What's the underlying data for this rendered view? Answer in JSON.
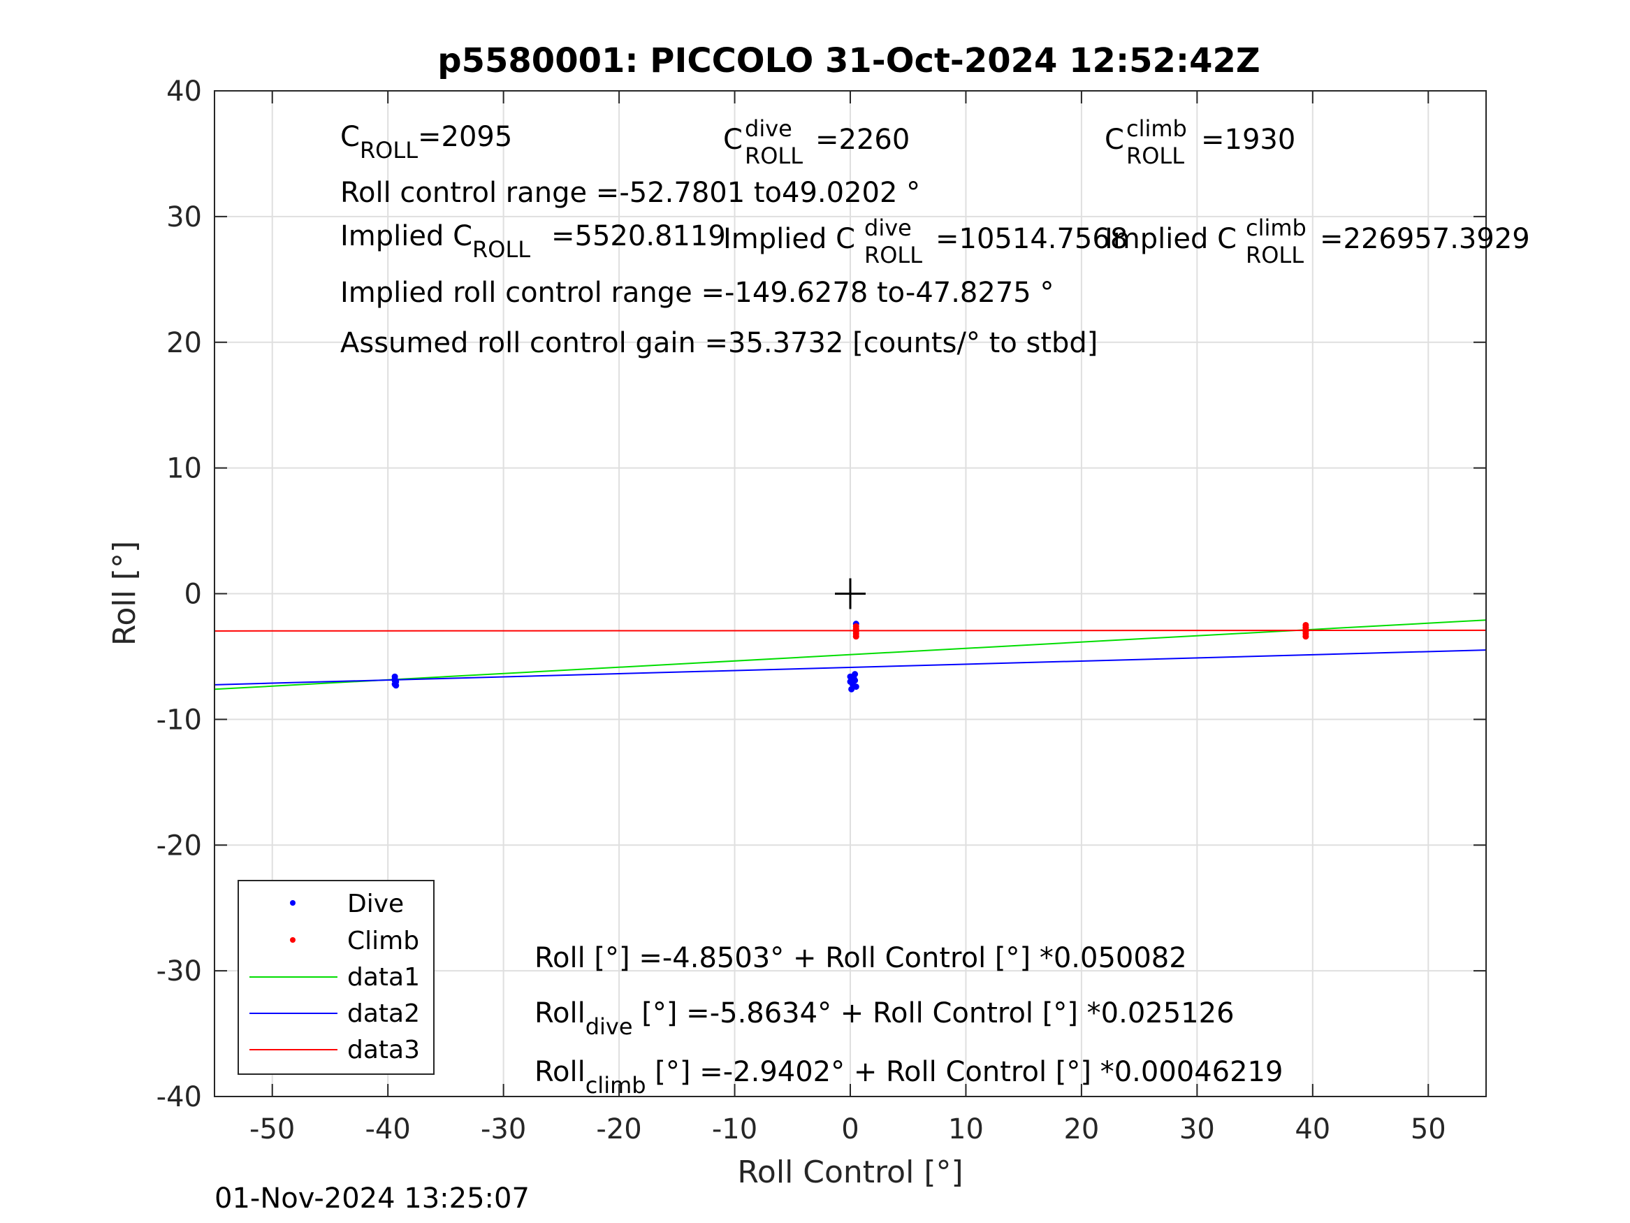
{
  "chart_data": {
    "type": "scatter",
    "title": "p5580001: PICCOLO 31-Oct-2024 12:52:42Z",
    "xlabel": "Roll Control [°]",
    "ylabel": "Roll [°]",
    "xlim": [
      -55,
      55
    ],
    "ylim": [
      -40,
      40
    ],
    "xticks": [
      "-50",
      "-40",
      "-30",
      "-20",
      "-10",
      "0",
      "10",
      "20",
      "30",
      "40",
      "50"
    ],
    "yticks": [
      "40",
      "30",
      "20",
      "10",
      "0",
      "-10",
      "-20",
      "-30",
      "-40"
    ],
    "grid": true,
    "legend_position": "bottom-left",
    "timestamp": "01-Nov-2024 13:25:07",
    "marker": {
      "x": 0,
      "y": 0,
      "symbol": "+"
    },
    "series": [
      {
        "name": "Dive",
        "kind": "points",
        "color": "#0000ff",
        "x": [
          -39.4,
          -39.4,
          -39.4,
          -39.3,
          -39.4,
          -39.3,
          0.0,
          0.3,
          0.4,
          0.0,
          0.2,
          0.5,
          0.1,
          0.4,
          0.5
        ],
        "y": [
          -6.6,
          -6.8,
          -6.9,
          -7.0,
          -7.2,
          -7.3,
          -6.6,
          -6.7,
          -6.9,
          -7.0,
          -7.2,
          -7.4,
          -7.6,
          -6.4,
          -2.4
        ]
      },
      {
        "name": "Climb",
        "kind": "points",
        "color": "#ff0000",
        "x": [
          0.5,
          0.5,
          0.5,
          0.5,
          0.5,
          0.5,
          39.4,
          39.4,
          39.4,
          39.4,
          39.4,
          39.4
        ],
        "y": [
          -2.6,
          -2.8,
          -2.9,
          -3.0,
          -3.2,
          -3.4,
          -2.5,
          -2.7,
          -2.9,
          -3.0,
          -3.2,
          -3.4
        ]
      },
      {
        "name": "data1",
        "kind": "line",
        "color": "#00dd00",
        "x": [
          -55,
          55
        ],
        "y": [
          -7.6048,
          -2.0958
        ]
      },
      {
        "name": "data2",
        "kind": "line",
        "color": "#0000ff",
        "x": [
          -55,
          55
        ],
        "y": [
          -7.2453,
          -4.4815
        ]
      },
      {
        "name": "data3",
        "kind": "line",
        "color": "#ff0000",
        "x": [
          -55,
          55
        ],
        "y": [
          -2.9656,
          -2.9148
        ]
      }
    ],
    "annotations": {
      "c_roll": {
        "base": "C",
        "sub": "ROLL",
        "value": "=2095"
      },
      "c_roll_dive": {
        "base": "C",
        "sup": "dive",
        "sub": "ROLL",
        "value": "=2260"
      },
      "c_roll_climb": {
        "base": "C",
        "sup": "climb",
        "sub": "ROLL",
        "value": "=1930"
      },
      "roll_control_range": "Roll control range =-52.7801 to49.0202 °",
      "implied_c_roll": {
        "prefix": "Implied C",
        "sub": "ROLL",
        "value": "=5520.8119"
      },
      "implied_c_roll_dive": {
        "prefix": "Implied C",
        "sup": "dive",
        "sub": "ROLL",
        "value": "=10514.7568"
      },
      "implied_c_roll_climb": {
        "prefix": "Implied C",
        "sup": "climb",
        "sub": "ROLL",
        "value": "=226957.3929"
      },
      "implied_roll_control_range": "Implied roll control range =-149.6278 to-47.8275 °",
      "assumed_gain": "Assumed roll control gain =35.3732 [counts/° to stbd]",
      "fit_all": "Roll [°] =-4.8503° + Roll Control [°] *0.050082",
      "fit_dive": {
        "base": "Roll",
        "sub": "dive",
        "rest": " [°] =-5.8634° + Roll Control [°] *0.025126"
      },
      "fit_climb": {
        "base": "Roll",
        "sub": "climb",
        "rest": " [°] =-2.9402° + Roll Control [°] *0.00046219"
      }
    }
  }
}
